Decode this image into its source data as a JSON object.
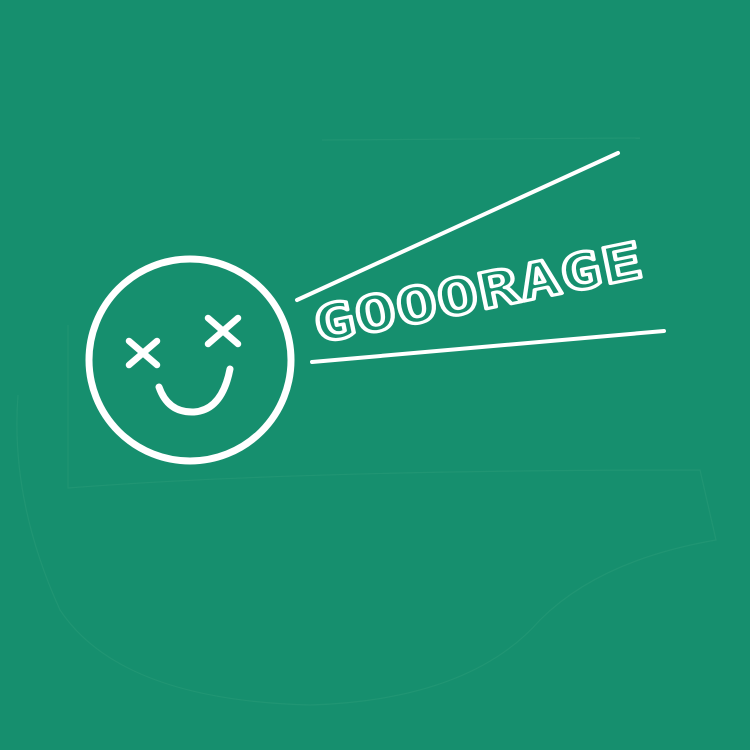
{
  "logo": {
    "brand_name": "GOOORAGE",
    "icon": "dizzy-smiley-face-icon"
  },
  "colors": {
    "background": "#168f6e",
    "foreground": "#ffffff",
    "faint_edge": "#2a9a78"
  }
}
